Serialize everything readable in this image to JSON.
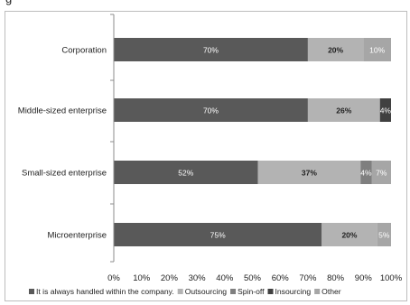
{
  "chart_data": {
    "type": "bar",
    "orientation": "horizontal",
    "stacked": true,
    "percent_stacked": true,
    "categories": [
      "Corporation",
      "Middle-sized enterprise",
      "Small-sized enterprise",
      "Microenterprise"
    ],
    "series": [
      {
        "name": "It is always handled within the company.",
        "color": "#595959",
        "label_color": "#ffffff",
        "values": [
          70,
          70,
          52,
          75
        ],
        "labels": [
          "70%",
          "70%",
          "52%",
          "75%"
        ]
      },
      {
        "name": "Outsourcing",
        "color": "#b3b3b3",
        "label_color": "#222222",
        "values": [
          20,
          26,
          37,
          20
        ],
        "labels": [
          "20%",
          "26%",
          "37%",
          "20%"
        ]
      },
      {
        "name": "Spin-off",
        "color": "#7f7f7f",
        "label_color": "#ffffff",
        "values": [
          0,
          0,
          4,
          0
        ],
        "labels": [
          "",
          "",
          "4%",
          ""
        ]
      },
      {
        "name": "Insourcing",
        "color": "#404040",
        "label_color": "#ffffff",
        "values": [
          0,
          4,
          0,
          0
        ],
        "labels": [
          "",
          "4%",
          "",
          ""
        ]
      },
      {
        "name": "Other",
        "color": "#a6a6a6",
        "label_color": "#ffffff",
        "values": [
          10,
          0,
          7,
          5
        ],
        "labels": [
          "10%",
          "",
          "7%",
          "5%"
        ]
      }
    ],
    "x_ticks": [
      "0%",
      "10%",
      "20%",
      "30%",
      "40%",
      "50%",
      "60%",
      "70%",
      "80%",
      "90%",
      "100%"
    ],
    "xlim": [
      0,
      100
    ],
    "grid": false,
    "legend_position": "bottom",
    "top_partial_text": "g"
  }
}
